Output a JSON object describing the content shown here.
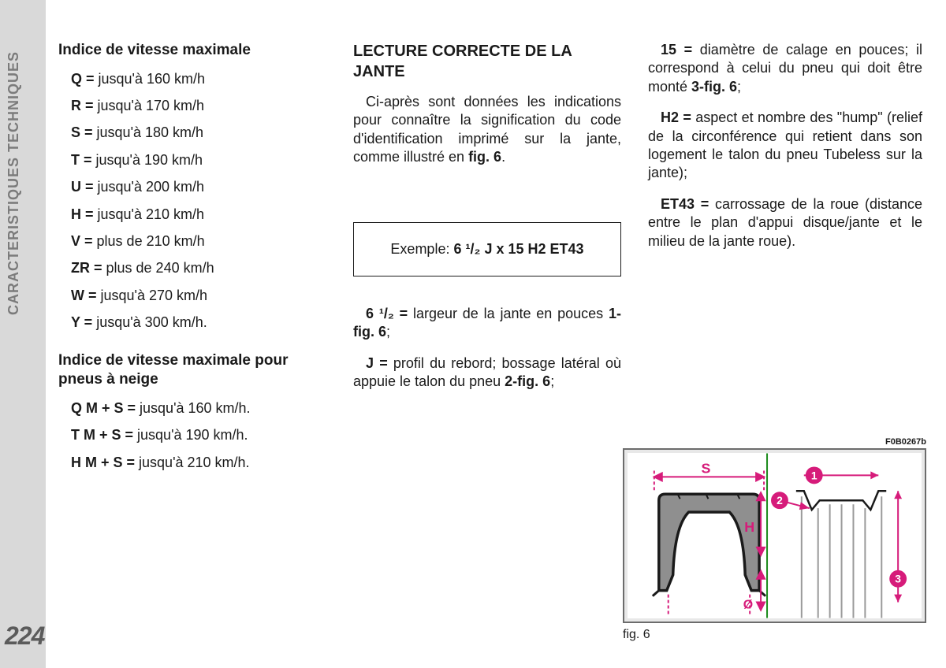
{
  "sidebar": {
    "section_label": "CARACTERISTIQUES TECHNIQUES",
    "page_number": "224"
  },
  "col1": {
    "heading1": "Indice de vitesse maximale",
    "speeds": [
      {
        "code": "Q =",
        "text": " jusqu'à 160 km/h"
      },
      {
        "code": "R =",
        "text": " jusqu'à 170 km/h"
      },
      {
        "code": "S =",
        "text": " jusqu'à 180 km/h"
      },
      {
        "code": "T =",
        "text": " jusqu'à 190 km/h"
      },
      {
        "code": "U =",
        "text": " jusqu'à 200 km/h"
      },
      {
        "code": "H =",
        "text": " jusqu'à 210 km/h"
      },
      {
        "code": "V =",
        "text": " plus de 210 km/h"
      },
      {
        "code": "ZR =",
        "text": " plus de 240 km/h"
      },
      {
        "code": "W =",
        "text": " jusqu'à 270 km/h"
      },
      {
        "code": "Y =",
        "text": " jusqu'à 300 km/h."
      }
    ],
    "heading2": "Indice de vitesse maximale pour pneus à neige",
    "snow": [
      {
        "code": "Q M + S =",
        "text": " jusqu'à 160 km/h."
      },
      {
        "code": "T M + S =",
        "text": " jusqu'à 190 km/h."
      },
      {
        "code": "H M + S =",
        "text": " jusqu'à 210 km/h."
      }
    ]
  },
  "col2": {
    "heading": "LECTURE CORRECTE DE LA JANTE",
    "intro_part1": "Ci-après sont données les indications pour connaître la signification du code d'identification imprimé sur la jante, comme illustré en ",
    "intro_bold": "fig. 6",
    "intro_part2": ".",
    "example_label": "Exemple: ",
    "example_value": "6 ¹/₂ J x 15 H2 ET43",
    "def1_code": "6 ¹/₂ =",
    "def1_text": " largeur de la jante en pouces ",
    "def1_ref": "1-fig. 6",
    "def1_end": ";",
    "def2_code": "J =",
    "def2_text": " profil du rebord; bossage latéral où appuie le talon du pneu ",
    "def2_ref": "2-fig. 6",
    "def2_end": ";"
  },
  "col3": {
    "def3_code": "15 =",
    "def3_text": " diamètre de calage en pouces; il correspond à celui du pneu qui doit être monté ",
    "def3_ref": "3-fig. 6",
    "def3_end": ";",
    "def4_code": "H2 =",
    "def4_text": " aspect et nombre des \"hump\" (relief de la circonférence qui retient dans son logement le talon du pneu Tubeless sur la jante);",
    "def5_code": "ET43 =",
    "def5_text": " carrossage de la roue (distance entre le plan d'appui disque/jante et le milieu de la jante roue)."
  },
  "figure": {
    "code": "F0B0267b",
    "caption": "fig. 6",
    "colors": {
      "magenta": "#d61b7a",
      "tire_fill": "#8f8f8f",
      "tire_stroke": "#1a1a1a",
      "frame_border": "#6c6c6c",
      "frame_bg": "#e8e8e8"
    },
    "labels": {
      "S": "S",
      "H": "H",
      "phi": "Ø"
    },
    "callouts": [
      "1",
      "2",
      "3"
    ]
  }
}
